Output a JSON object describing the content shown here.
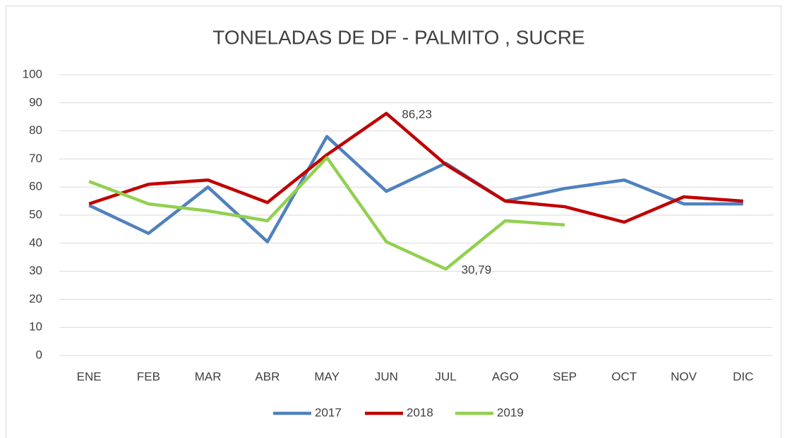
{
  "chart_data": {
    "type": "line",
    "title": "TONELADAS DE DF - PALMITO , SUCRE",
    "categories": [
      "ENE",
      "FEB",
      "MAR",
      "ABR",
      "MAY",
      "JUN",
      "JUL",
      "AGO",
      "SEP",
      "OCT",
      "NOV",
      "DIC"
    ],
    "series": [
      {
        "name": "2017",
        "color": "#4f81bd",
        "values": [
          53.5,
          43.5,
          60,
          40.5,
          78,
          58.5,
          68.5,
          55,
          59.5,
          62.5,
          54,
          54
        ]
      },
      {
        "name": "2018",
        "color": "#c00000",
        "values": [
          54,
          61,
          62.5,
          54.5,
          71.5,
          86.23,
          68,
          55,
          53,
          47.5,
          56.5,
          55
        ],
        "value_labels": [
          null,
          null,
          null,
          null,
          null,
          "86,23",
          null,
          null,
          null,
          null,
          null,
          null
        ]
      },
      {
        "name": "2019",
        "color": "#92d050",
        "values": [
          62,
          54,
          51.5,
          48,
          70.5,
          40.5,
          30.79,
          48,
          46.5,
          null,
          null,
          null
        ],
        "value_labels": [
          null,
          null,
          null,
          null,
          null,
          null,
          "30,79",
          null,
          null,
          null,
          null,
          null
        ]
      }
    ],
    "ylim": [
      0,
      100
    ],
    "yticks": [
      0,
      10,
      20,
      30,
      40,
      50,
      60,
      70,
      80,
      90,
      100
    ],
    "grid": true,
    "legend": "bottom"
  }
}
